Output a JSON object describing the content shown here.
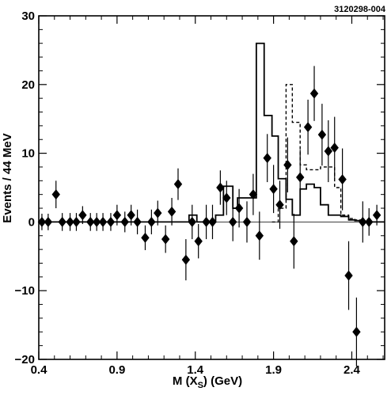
{
  "figure_id": "3120298-004",
  "chart_data": {
    "type": "scatter",
    "xlabel": "M (X",
    "xlabel_sub": "S",
    "xlabel_tail": ") (GeV)",
    "ylabel": "Events /  44  MeV",
    "xlim": [
      0.4,
      2.61
    ],
    "ylim": [
      -20,
      30
    ],
    "xticks": [
      0.4,
      0.9,
      1.4,
      1.9,
      2.4
    ],
    "xtick_labels": [
      "0.4",
      "0.9",
      "1.4",
      "1.9",
      "2.4"
    ],
    "yticks": [
      -20,
      -10,
      0,
      10,
      20,
      30
    ],
    "ytick_labels": [
      "−20",
      "−10",
      "0",
      "10",
      "20",
      "30"
    ],
    "zero_line": true,
    "bin_width": 0.044,
    "series": [
      {
        "kind": "data-points",
        "marker": "diamond",
        "points": [
          {
            "x": 0.42,
            "y": 0.0,
            "err": 1.2
          },
          {
            "x": 0.46,
            "y": 0.0,
            "err": 1.2
          },
          {
            "x": 0.51,
            "y": 4.0,
            "err": 2.0
          },
          {
            "x": 0.55,
            "y": 0.0,
            "err": 1.3
          },
          {
            "x": 0.6,
            "y": 0.0,
            "err": 1.3
          },
          {
            "x": 0.64,
            "y": 0.0,
            "err": 1.3
          },
          {
            "x": 0.68,
            "y": 1.0,
            "err": 1.3
          },
          {
            "x": 0.73,
            "y": 0.0,
            "err": 1.3
          },
          {
            "x": 0.77,
            "y": 0.0,
            "err": 1.3
          },
          {
            "x": 0.81,
            "y": 0.0,
            "err": 1.3
          },
          {
            "x": 0.86,
            "y": 0.0,
            "err": 1.3
          },
          {
            "x": 0.9,
            "y": 1.0,
            "err": 1.5
          },
          {
            "x": 0.95,
            "y": 0.0,
            "err": 1.5
          },
          {
            "x": 0.99,
            "y": 1.0,
            "err": 1.5
          },
          {
            "x": 1.03,
            "y": 0.0,
            "err": 1.8
          },
          {
            "x": 1.08,
            "y": -2.3,
            "err": 1.8
          },
          {
            "x": 1.12,
            "y": 0.0,
            "err": 1.8
          },
          {
            "x": 1.16,
            "y": 1.3,
            "err": 1.8
          },
          {
            "x": 1.21,
            "y": -2.5,
            "err": 2.0
          },
          {
            "x": 1.25,
            "y": 1.5,
            "err": 2.0
          },
          {
            "x": 1.29,
            "y": 5.5,
            "err": 2.3
          },
          {
            "x": 1.34,
            "y": -5.5,
            "err": 3.0
          },
          {
            "x": 1.38,
            "y": 0.0,
            "err": 2.5
          },
          {
            "x": 1.42,
            "y": -2.8,
            "err": 2.5
          },
          {
            "x": 1.47,
            "y": 0.0,
            "err": 2.5
          },
          {
            "x": 1.51,
            "y": 0.0,
            "err": 2.5
          },
          {
            "x": 1.56,
            "y": 5.0,
            "err": 2.5
          },
          {
            "x": 1.6,
            "y": 3.5,
            "err": 2.5
          },
          {
            "x": 1.64,
            "y": 0.0,
            "err": 2.8
          },
          {
            "x": 1.68,
            "y": 2.0,
            "err": 2.8
          },
          {
            "x": 1.73,
            "y": 0.0,
            "err": 3.0
          },
          {
            "x": 1.77,
            "y": 4.0,
            "err": 3.0
          },
          {
            "x": 1.81,
            "y": -2.0,
            "err": 3.5
          },
          {
            "x": 1.86,
            "y": 9.3,
            "err": 3.5
          },
          {
            "x": 1.9,
            "y": 4.8,
            "err": 3.5
          },
          {
            "x": 1.94,
            "y": 2.5,
            "err": 3.5
          },
          {
            "x": 1.99,
            "y": 8.3,
            "err": 4.0
          },
          {
            "x": 2.03,
            "y": -2.8,
            "err": 4.0
          },
          {
            "x": 2.07,
            "y": 6.5,
            "err": 4.0
          },
          {
            "x": 2.12,
            "y": 13.8,
            "err": 4.0
          },
          {
            "x": 2.16,
            "y": 18.7,
            "err": 4.0
          },
          {
            "x": 2.21,
            "y": 12.7,
            "err": 4.5
          },
          {
            "x": 2.25,
            "y": 10.3,
            "err": 4.5
          },
          {
            "x": 2.29,
            "y": 10.8,
            "err": 4.5
          },
          {
            "x": 2.34,
            "y": 6.2,
            "err": 4.5
          },
          {
            "x": 2.38,
            "y": -7.8,
            "err": 5.0
          },
          {
            "x": 2.43,
            "y": -16.0,
            "err": 5.0
          },
          {
            "x": 2.47,
            "y": 0.0,
            "err": 3.0
          },
          {
            "x": 2.51,
            "y": 0.0,
            "err": 2.0
          },
          {
            "x": 2.56,
            "y": 1.0,
            "err": 1.5
          }
        ]
      },
      {
        "kind": "histogram-solid",
        "edges": [
          0.4,
          1.36,
          1.41,
          1.53,
          1.58,
          1.64,
          1.67,
          1.79,
          1.84,
          1.89,
          1.93,
          1.98,
          2.02,
          2.07,
          2.11,
          2.16,
          2.2,
          2.25,
          2.29,
          2.33,
          2.38,
          2.42,
          2.47,
          2.61
        ],
        "heights": [
          0,
          1.0,
          0,
          1.0,
          5.2,
          2.0,
          3.5,
          26,
          15.5,
          12.5,
          6.3,
          3.3,
          1.0,
          4.8,
          5.5,
          5.0,
          2.5,
          1.0,
          1.0,
          0.8,
          0.3,
          0.2,
          0
        ]
      },
      {
        "kind": "histogram-dashed",
        "edges": [
          1.89,
          1.93,
          1.98,
          2.02,
          2.07,
          2.11,
          2.16,
          2.2,
          2.25,
          2.29,
          2.33,
          2.38,
          2.42,
          2.47
        ],
        "heights": [
          0.0,
          2.0,
          20.0,
          14.5,
          8.3,
          7.6,
          7.6,
          8.0,
          8.0,
          5.0,
          1.0,
          0.5,
          0.3
        ]
      }
    ]
  }
}
